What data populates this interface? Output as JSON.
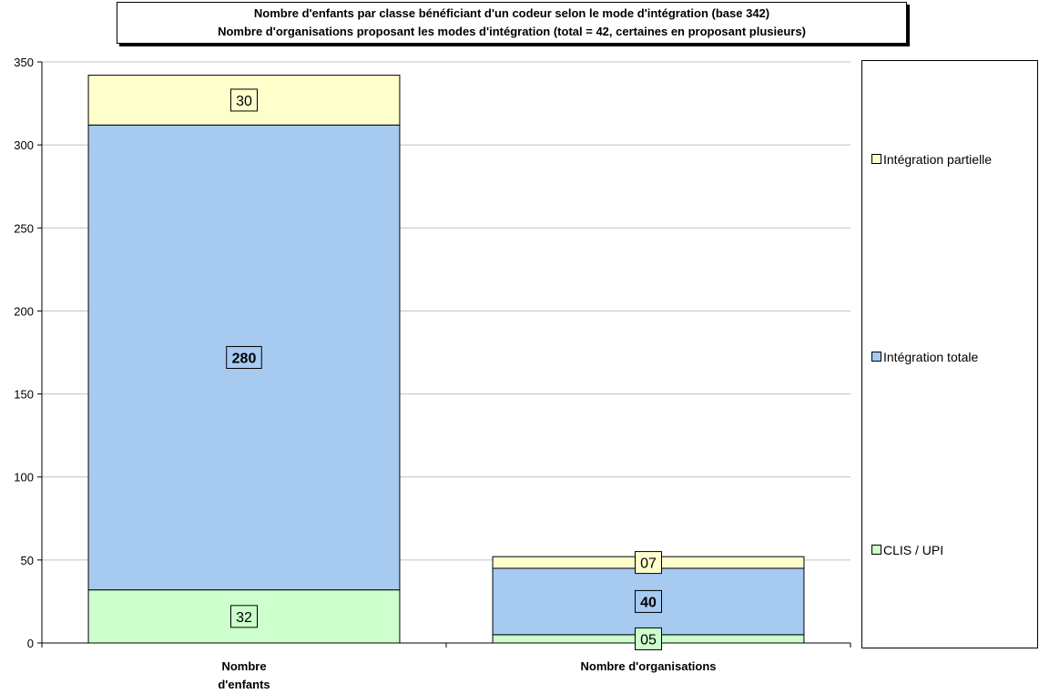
{
  "chart_data": {
    "type": "bar",
    "stacked": true,
    "title": "Nombre d'enfants par classe bénéficiant d'un codeur selon le mode d'intégration (base 342)",
    "subtitle": "Nombre d'organisations proposant les modes d'intégration (total = 42, certaines en proposant plusieurs)",
    "categories": [
      "Nombre d'enfants",
      "Nombre d'organisations"
    ],
    "series": [
      {
        "name": "CLIS / UPI",
        "values": [
          32,
          5
        ],
        "labels": [
          "32",
          "05"
        ],
        "color": "#ccffcc",
        "bold": false
      },
      {
        "name": "Intégration totale",
        "values": [
          280,
          40
        ],
        "labels": [
          "280",
          "40"
        ],
        "color": "#a6caf0",
        "bold": true
      },
      {
        "name": "Intégration partielle",
        "values": [
          30,
          7
        ],
        "labels": [
          "30",
          "07"
        ],
        "color": "#ffffcc",
        "bold": false
      }
    ],
    "ylim": [
      0,
      350
    ],
    "yticks": [
      0,
      50,
      100,
      150,
      200,
      250,
      300,
      350
    ],
    "xlabel": "",
    "ylabel": "",
    "grid": true,
    "legend_position": "right"
  }
}
